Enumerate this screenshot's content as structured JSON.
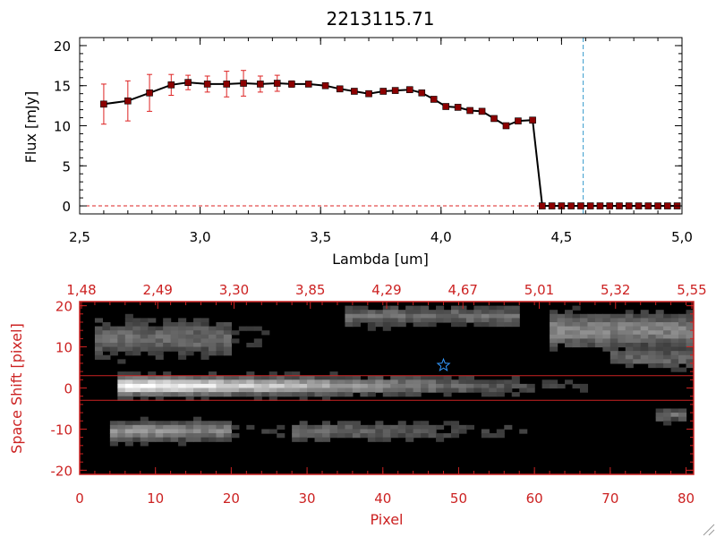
{
  "chart_data": [
    {
      "type": "line",
      "title": "2213115.71",
      "xlabel": "Lambda [um]",
      "ylabel": "Flux [mJy]",
      "xlim": [
        2.5,
        5.0
      ],
      "ylim": [
        -1,
        21
      ],
      "xticks": [
        "2.5",
        "3.0",
        "3.5",
        "4.0",
        "4.5",
        "5.0"
      ],
      "yticks": [
        "0",
        "5",
        "10",
        "15",
        "20"
      ],
      "colors": {
        "line": "#000000",
        "marker": "#8b0000",
        "errorbar": "#dd2222",
        "vline": "#3399cc",
        "zero_line": "#dd2222"
      },
      "vline_x": 4.59,
      "series": [
        {
          "x": [
            2.6,
            2.7,
            2.79,
            2.88,
            2.95,
            3.03,
            3.11,
            3.18,
            3.25,
            3.32,
            3.38,
            3.45,
            3.52,
            3.58,
            3.64,
            3.7,
            3.76,
            3.81,
            3.87,
            3.92,
            3.97,
            4.02,
            4.07,
            4.12,
            4.17,
            4.22,
            4.27,
            4.32,
            4.38,
            4.42,
            4.46,
            4.5,
            4.54,
            4.58,
            4.62,
            4.66,
            4.7,
            4.74,
            4.78,
            4.82,
            4.86,
            4.9,
            4.94,
            4.98
          ],
          "y": [
            12.7,
            13.1,
            14.1,
            15.1,
            15.4,
            15.2,
            15.2,
            15.3,
            15.2,
            15.3,
            15.2,
            15.2,
            15.0,
            14.6,
            14.3,
            14.0,
            14.3,
            14.4,
            14.5,
            14.1,
            13.3,
            12.4,
            12.3,
            11.9,
            11.8,
            10.9,
            10.0,
            10.6,
            10.7,
            0,
            0,
            0,
            0,
            0,
            0,
            0,
            0,
            0,
            0,
            0,
            0,
            0,
            0,
            0
          ],
          "err": [
            2.5,
            2.5,
            2.3,
            1.3,
            0.9,
            1.0,
            1.6,
            1.6,
            1.0,
            1.0,
            0.4,
            0.3,
            0.3,
            0,
            0,
            0,
            0,
            0,
            0,
            0,
            0,
            0,
            0,
            0,
            0,
            0,
            0,
            0,
            0,
            0,
            0,
            0,
            0,
            0,
            0,
            0,
            0,
            0,
            0,
            0,
            0,
            0,
            0,
            0
          ]
        }
      ]
    },
    {
      "type": "heatmap",
      "xlabel": "Pixel",
      "ylabel": "Space Shift [pixel]",
      "xlim": [
        0,
        81
      ],
      "ylim": [
        -21,
        21
      ],
      "xticks": [
        "0",
        "10",
        "20",
        "30",
        "40",
        "50",
        "60",
        "70",
        "80"
      ],
      "yticks": [
        "-20",
        "-10",
        "0",
        "10",
        "20"
      ],
      "top_ticks": [
        "1.48",
        "2.49",
        "3.30",
        "3.85",
        "4.29",
        "4.67",
        "5.01",
        "5.32",
        "5.55"
      ],
      "colors": {
        "axis": "#cc2222",
        "star": "#3399ff"
      },
      "extraction_lines_y": [
        3,
        -3
      ],
      "star_marker": {
        "x": 48,
        "y": 5.5
      }
    }
  ]
}
